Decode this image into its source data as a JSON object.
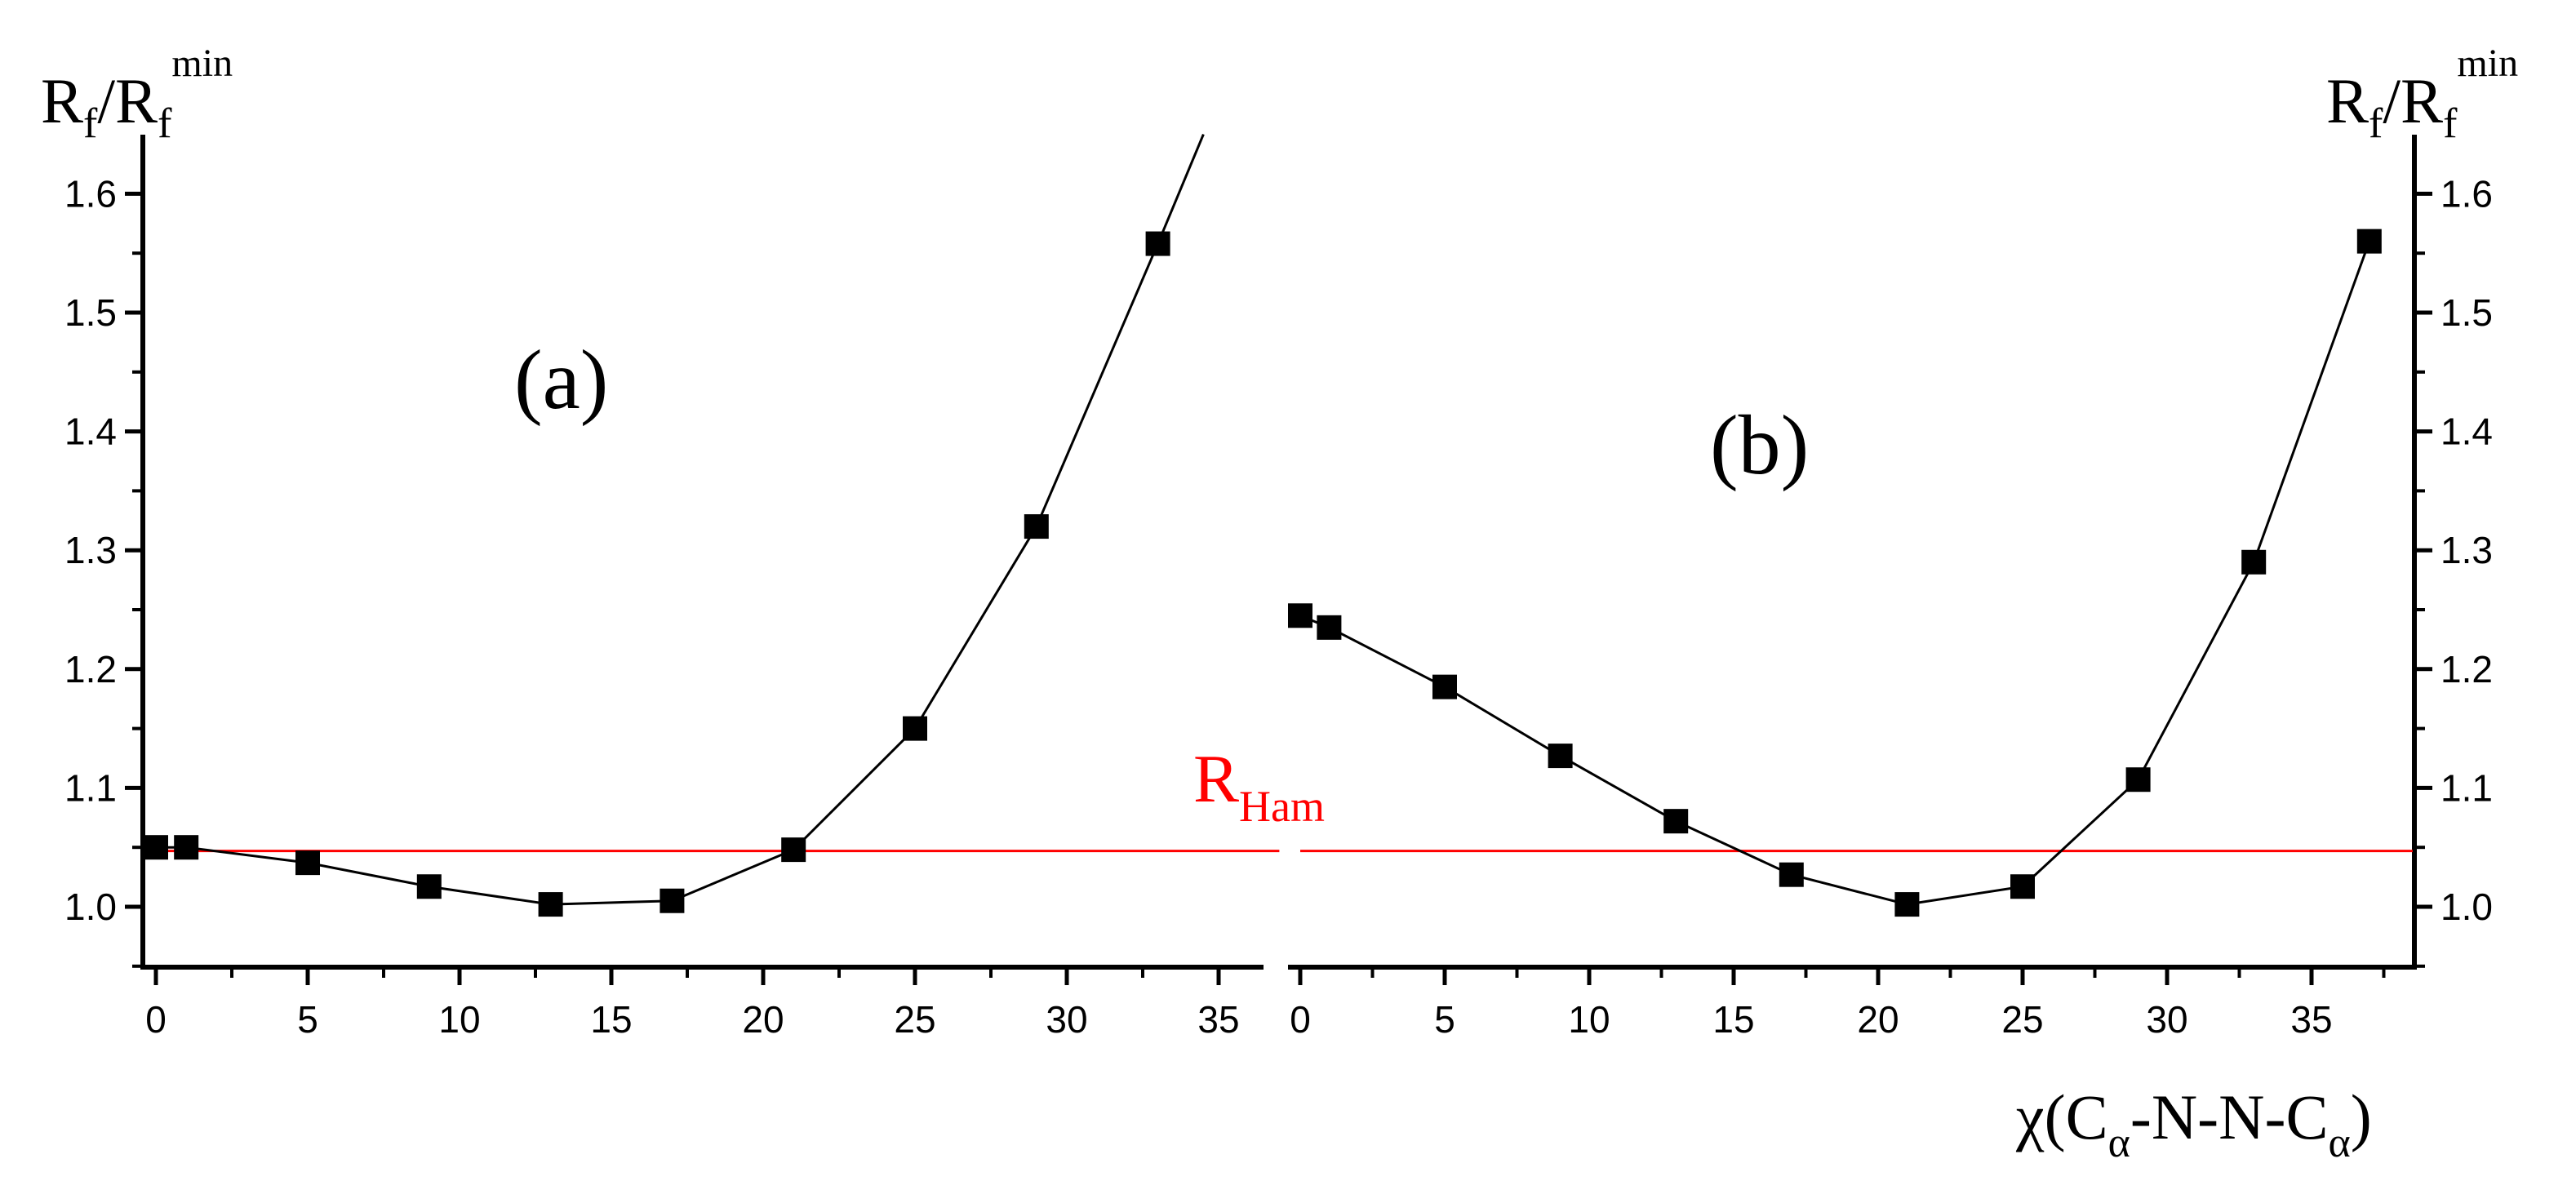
{
  "colors": {
    "axis": "#000000",
    "series": "#000000",
    "reference": "#ff0000"
  },
  "y_axis_title": {
    "left": {
      "main": "R",
      "sub1": "f",
      "sep": "/R",
      "sub2": "f",
      "sup": "min"
    },
    "right": {
      "main": "R",
      "sub1": "f",
      "sep": "/R",
      "sub2": "f",
      "sup": "min"
    }
  },
  "x_axis_title": {
    "pre": "χ(C",
    "sub1": "α",
    "mid": "-N-N-C",
    "sub2": "α",
    "post": ")"
  },
  "reference_label": {
    "main": "R",
    "sub": "Ham"
  },
  "chart_data": [
    {
      "type": "line",
      "panel_label": "(a)",
      "x": [
        0,
        1,
        5,
        9,
        13,
        17,
        21,
        25,
        29,
        33
      ],
      "y": [
        1.05,
        1.05,
        1.037,
        1.017,
        1.002,
        1.005,
        1.048,
        1.15,
        1.32,
        1.558
      ],
      "line_extends_to": {
        "x": 34.5,
        "y": 1.65
      },
      "reference_line": {
        "y": 1.047,
        "x_start": 0,
        "x_end": 37
      },
      "xlim": [
        -1,
        38.5
      ],
      "ylim": [
        0.95,
        1.65
      ],
      "x_ticks": [
        0,
        5,
        10,
        15,
        20,
        25,
        30,
        35
      ],
      "x_tick_labels": [
        "0",
        "5",
        "10",
        "15",
        "20",
        "25",
        "30",
        "35"
      ],
      "y_ticks": [
        1.0,
        1.1,
        1.2,
        1.3,
        1.4,
        1.5,
        1.6
      ],
      "y_tick_labels": [
        "1.0",
        "1.1",
        "1.2",
        "1.3",
        "1.4",
        "1.5",
        "1.6"
      ],
      "grid": false
    },
    {
      "type": "line",
      "panel_label": "(b)",
      "x": [
        0,
        1,
        5,
        9,
        13,
        17,
        21,
        25,
        29,
        33,
        37
      ],
      "y": [
        1.245,
        1.235,
        1.185,
        1.127,
        1.072,
        1.027,
        1.002,
        1.017,
        1.107,
        1.29,
        1.56
      ],
      "reference_line": {
        "y": 1.047,
        "x_start": 0,
        "x_end": 38.5
      },
      "xlim": [
        -0.8,
        39
      ],
      "ylim": [
        0.95,
        1.65
      ],
      "x_ticks": [
        0,
        5,
        10,
        15,
        20,
        25,
        30,
        35
      ],
      "x_tick_labels": [
        "0",
        "5",
        "10",
        "15",
        "20",
        "25",
        "30",
        "35"
      ],
      "y_ticks": [
        1.0,
        1.1,
        1.2,
        1.3,
        1.4,
        1.5,
        1.6
      ],
      "y_tick_labels": [
        "1.0",
        "1.1",
        "1.2",
        "1.3",
        "1.4",
        "1.5",
        "1.6"
      ],
      "grid": false
    }
  ]
}
